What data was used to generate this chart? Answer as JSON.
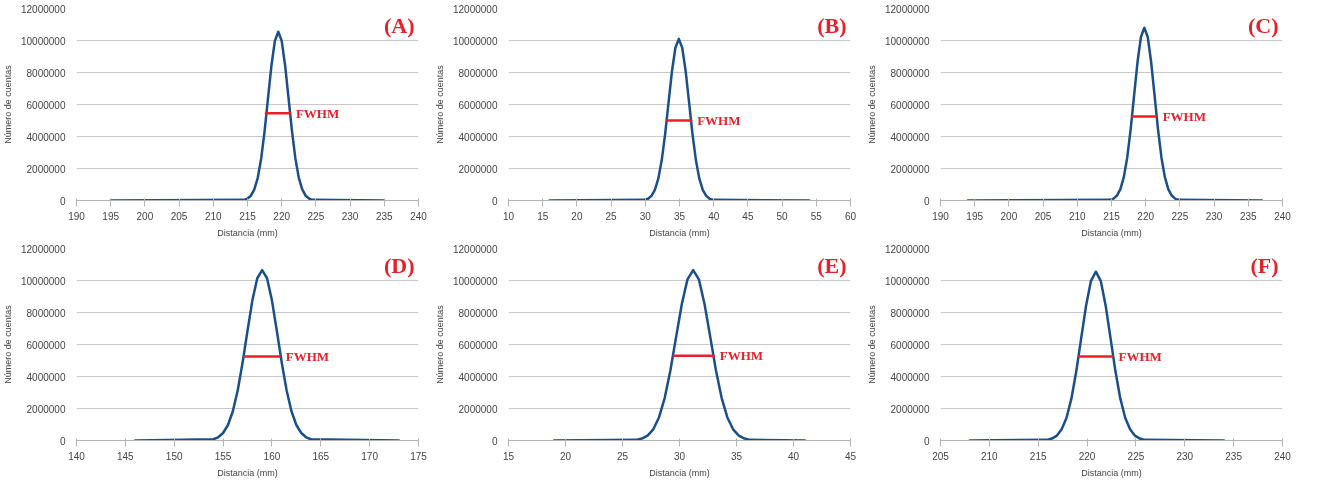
{
  "chart_data": [
    {
      "type": "line",
      "title": "(A)",
      "xlabel": "Distancia (mm)",
      "ylabel": "Número de cuentas",
      "xlim": [
        190,
        240
      ],
      "xticks": [
        190,
        195,
        200,
        205,
        210,
        215,
        220,
        225,
        230,
        235,
        240
      ],
      "ylim": [
        0,
        12000000
      ],
      "yticks": [
        0,
        2000000,
        4000000,
        6000000,
        8000000,
        10000000,
        12000000
      ],
      "grid": "y",
      "series": [
        {
          "color": "#1b4f8a",
          "x": [
            195,
            214.5,
            215,
            215.5,
            216,
            216.5,
            217,
            217.5,
            218,
            218.5,
            219,
            219.5,
            220,
            220.5,
            221,
            221.5,
            222,
            222.5,
            223,
            223.5,
            224,
            224.5,
            235
          ],
          "values": [
            0,
            40000,
            120000,
            300000,
            700000,
            1420000,
            2630000,
            4340000,
            6400000,
            8440000,
            9980000,
            10550000,
            9980000,
            8440000,
            6400000,
            4340000,
            2630000,
            1420000,
            700000,
            300000,
            120000,
            40000,
            0
          ]
        },
        {
          "name": "FWHM",
          "color": "#e8202a",
          "x": [
            217.7,
            221.2
          ],
          "values": [
            5450000,
            5450000
          ]
        }
      ]
    },
    {
      "type": "line",
      "title": "(B)",
      "xlabel": "Distancia (mm)",
      "ylabel": "Número de cuentas",
      "xlim": [
        10,
        60
      ],
      "xticks": [
        10,
        15,
        20,
        25,
        30,
        35,
        40,
        45,
        50,
        55,
        60
      ],
      "ylim": [
        0,
        12000000
      ],
      "yticks": [
        0,
        2000000,
        4000000,
        6000000,
        8000000,
        10000000,
        12000000
      ],
      "grid": "y",
      "series": [
        {
          "color": "#1b4f8a",
          "x": [
            16,
            29.9,
            30.4,
            30.9,
            31.4,
            31.9,
            32.4,
            32.9,
            33.4,
            33.9,
            34.4,
            34.9,
            35.4,
            35.9,
            36.4,
            36.9,
            37.4,
            37.9,
            38.4,
            38.9,
            39.4,
            39.9,
            54
          ],
          "values": [
            0,
            40000,
            110000,
            290000,
            670000,
            1360000,
            2510000,
            4150000,
            6130000,
            8080000,
            9550000,
            10100000,
            9550000,
            8080000,
            6130000,
            4150000,
            2510000,
            1360000,
            670000,
            290000,
            110000,
            40000,
            0
          ]
        },
        {
          "name": "FWHM",
          "color": "#e8202a",
          "x": [
            33.2,
            36.7
          ],
          "values": [
            5000000,
            5000000
          ]
        }
      ]
    },
    {
      "type": "line",
      "title": "(C)",
      "xlabel": "Distancia (mm)",
      "ylabel": "Número de cuentas",
      "xlim": [
        190,
        240
      ],
      "xticks": [
        190,
        195,
        200,
        205,
        210,
        215,
        220,
        225,
        230,
        235,
        240
      ],
      "ylim": [
        0,
        12000000
      ],
      "yticks": [
        0,
        2000000,
        4000000,
        6000000,
        8000000,
        10000000,
        12000000
      ],
      "grid": "y",
      "series": [
        {
          "color": "#1b4f8a",
          "x": [
            194,
            214.8,
            215.3,
            215.8,
            216.3,
            216.8,
            217.3,
            217.8,
            218.3,
            218.8,
            219.3,
            219.8,
            220.3,
            220.8,
            221.3,
            221.8,
            222.3,
            222.8,
            223.3,
            223.8,
            224.3,
            224.8,
            237
          ],
          "values": [
            0,
            40000,
            120000,
            310000,
            710000,
            1460000,
            2690000,
            4440000,
            6560000,
            8640000,
            10220000,
            10800000,
            10220000,
            8640000,
            6560000,
            4440000,
            2690000,
            1460000,
            710000,
            310000,
            120000,
            40000,
            0
          ]
        },
        {
          "name": "FWHM",
          "color": "#e8202a",
          "x": [
            218,
            221.6
          ],
          "values": [
            5250000,
            5250000
          ]
        }
      ]
    },
    {
      "type": "line",
      "title": "(D)",
      "xlabel": "Distancia (mm)",
      "ylabel": "Número de cuentas",
      "xlim": [
        140,
        175
      ],
      "xticks": [
        140,
        145,
        150,
        155,
        160,
        165,
        170,
        175
      ],
      "ylim": [
        0,
        12000000
      ],
      "yticks": [
        0,
        2000000,
        4000000,
        6000000,
        8000000,
        10000000,
        12000000
      ],
      "grid": "y",
      "series": [
        {
          "color": "#1b4f8a",
          "x": [
            146,
            154,
            154.5,
            155,
            155.5,
            156,
            156.5,
            157,
            157.5,
            158,
            158.5,
            159,
            159.5,
            160,
            160.5,
            161,
            161.5,
            162,
            162.5,
            163,
            163.5,
            164,
            173
          ],
          "values": [
            0,
            80000,
            200000,
            470000,
            970000,
            1830000,
            3140000,
            4880000,
            6860000,
            8760000,
            10140000,
            10650000,
            10140000,
            8760000,
            6860000,
            4880000,
            3140000,
            1830000,
            970000,
            470000,
            200000,
            80000,
            0
          ]
        },
        {
          "name": "FWHM",
          "color": "#e8202a",
          "x": [
            157.2,
            160.8
          ],
          "values": [
            5250000,
            5250000
          ]
        }
      ]
    },
    {
      "type": "line",
      "title": "(E)",
      "xlabel": "Distancia (mm)",
      "ylabel": "Número de cuentas",
      "xlim": [
        15,
        45
      ],
      "xticks": [
        15,
        20,
        25,
        30,
        35,
        40,
        45
      ],
      "ylim": [
        0,
        12000000
      ],
      "yticks": [
        0,
        2000000,
        4000000,
        6000000,
        8000000,
        10000000,
        12000000
      ],
      "grid": "y",
      "series": [
        {
          "color": "#1b4f8a",
          "x": [
            19,
            26.2,
            26.7,
            27.2,
            27.7,
            28.2,
            28.7,
            29.2,
            29.7,
            30.2,
            30.7,
            31.2,
            31.7,
            32.2,
            32.7,
            33.2,
            33.7,
            34.2,
            34.7,
            35.2,
            35.7,
            36.2,
            41
          ],
          "values": [
            0,
            40000,
            120000,
            300000,
            700000,
            1440000,
            2650000,
            4380000,
            6460000,
            8520000,
            10070000,
            10650000,
            10070000,
            8520000,
            6460000,
            4380000,
            2650000,
            1440000,
            700000,
            300000,
            120000,
            40000,
            0
          ]
        },
        {
          "name": "FWHM",
          "color": "#e8202a",
          "x": [
            29.5,
            33.0
          ],
          "values": [
            5300000,
            5300000
          ]
        }
      ]
    },
    {
      "type": "line",
      "title": "(F)",
      "xlabel": "Distancia (mm)",
      "ylabel": "Número de cuentas",
      "xlim": [
        205,
        240
      ],
      "xticks": [
        205,
        210,
        215,
        220,
        225,
        230,
        235,
        240
      ],
      "ylim": [
        0,
        12000000
      ],
      "yticks": [
        0,
        2000000,
        4000000,
        6000000,
        8000000,
        10000000,
        12000000
      ],
      "grid": "y",
      "series": [
        {
          "color": "#1b4f8a",
          "x": [
            208,
            215.9,
            216.4,
            216.9,
            217.4,
            217.9,
            218.4,
            218.9,
            219.4,
            219.9,
            220.4,
            220.9,
            221.4,
            221.9,
            222.4,
            222.9,
            223.4,
            223.9,
            224.4,
            224.9,
            225.4,
            225.9,
            234
          ],
          "values": [
            0,
            40000,
            120000,
            300000,
            700000,
            1420000,
            2630000,
            4340000,
            6400000,
            8440000,
            9980000,
            10550000,
            9980000,
            8440000,
            6400000,
            4340000,
            2630000,
            1420000,
            700000,
            300000,
            120000,
            40000,
            0
          ]
        },
        {
          "name": "FWHM",
          "color": "#e8202a",
          "x": [
            219.2,
            222.6
          ],
          "values": [
            5250000,
            5250000
          ]
        }
      ]
    }
  ]
}
